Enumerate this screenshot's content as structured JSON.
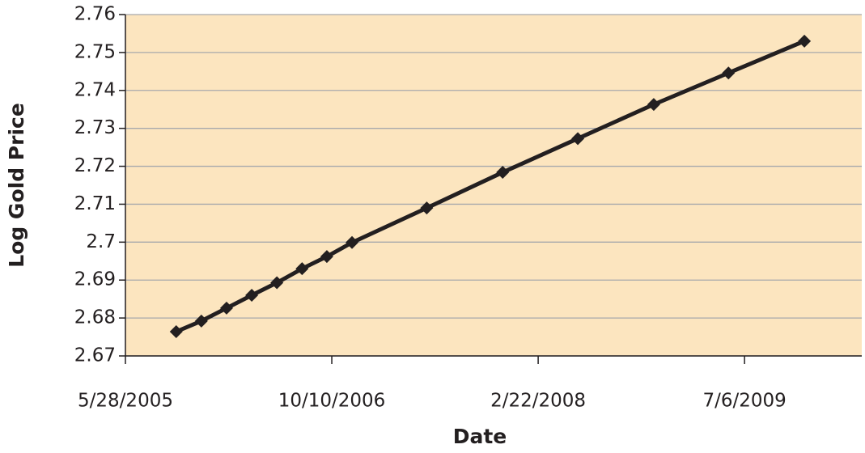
{
  "chart_data": {
    "type": "line",
    "x_label": "Date",
    "y_label": "Log Gold Price",
    "x": [
      "9/28/2005",
      "11/28/2005",
      "1/28/2006",
      "3/30/2006",
      "5/30/2006",
      "7/30/2006",
      "9/28/2006",
      "11/28/2006",
      "5/28/2007",
      "11/28/2007",
      "5/28/2008",
      "11/28/2008",
      "5/28/2009",
      "11/28/2009"
    ],
    "series": [
      {
        "color": "#231f20",
        "values": [
          2.6764,
          2.6792,
          2.6826,
          2.686,
          2.6893,
          2.693,
          2.6962,
          2.6999,
          2.709,
          2.7184,
          2.7273,
          2.7363,
          2.7446,
          2.753
        ]
      }
    ],
    "xlim": [
      "5/28/2005",
      "4/16/2010"
    ],
    "xticks": [
      "5/28/2005",
      "10/10/2006",
      "2/22/2008",
      "7/6/2009"
    ],
    "ylim": [
      2.67,
      2.76
    ],
    "yticks": [
      2.67,
      2.68,
      2.69,
      2.7,
      2.71,
      2.72,
      2.73,
      2.74,
      2.75,
      2.76
    ],
    "grid": true,
    "background": "#fce5bf"
  }
}
